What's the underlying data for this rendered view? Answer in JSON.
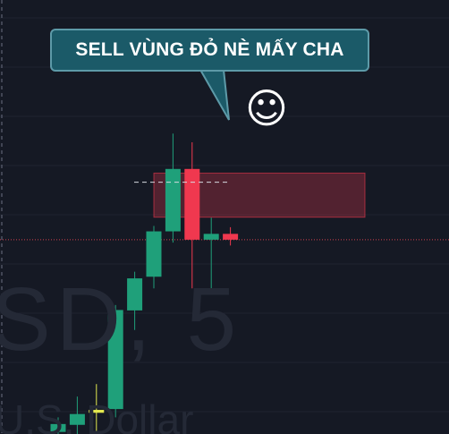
{
  "annotation": {
    "text": "SELL VÙNG ĐỎ NÈ MẤY CHA",
    "emoji": "☺",
    "fill_color": "#1b5a68",
    "border_color": "#5d9aa8"
  },
  "watermark": {
    "symbol_fragment": "SD, 5",
    "name_fragment": "U.S. Dollar"
  },
  "colors": {
    "background": "#151924",
    "bull": "#1fa07a",
    "bear": "#f0384f",
    "highlight": "#e3e84f",
    "sell_zone": "#f0384f",
    "price_line": "#d1404d"
  },
  "chart_data": {
    "type": "candlestick",
    "title": "",
    "price_scale": {
      "top": 1.0,
      "bottom": 0.0,
      "visible": false
    },
    "grid": true,
    "sell_zone": {
      "high": 0.627,
      "low": 0.521
    },
    "resistance_dashed_level": 0.605,
    "last_price_level": 0.467,
    "candles": [
      {
        "i": 0,
        "open": 0.005,
        "high": 0.04,
        "low": -0.02,
        "close": 0.024,
        "color": "bull"
      },
      {
        "i": 1,
        "open": 0.022,
        "high": 0.09,
        "low": -0.01,
        "close": 0.048,
        "color": "bull"
      },
      {
        "i": 2,
        "open": 0.051,
        "high": 0.12,
        "low": -0.01,
        "close": 0.058,
        "color": "highlight"
      },
      {
        "i": 3,
        "open": 0.06,
        "high": 0.31,
        "low": 0.04,
        "close": 0.298,
        "color": "bull"
      },
      {
        "i": 4,
        "open": 0.297,
        "high": 0.39,
        "low": 0.25,
        "close": 0.374,
        "color": "bull"
      },
      {
        "i": 5,
        "open": 0.378,
        "high": 0.5,
        "low": 0.35,
        "close": 0.487,
        "color": "bull"
      },
      {
        "i": 6,
        "open": 0.487,
        "high": 0.722,
        "low": 0.46,
        "close": 0.637,
        "color": "bull"
      },
      {
        "i": 7,
        "open": 0.637,
        "high": 0.701,
        "low": 0.35,
        "close": 0.467,
        "color": "bear"
      },
      {
        "i": 8,
        "open": 0.467,
        "high": 0.52,
        "low": 0.344,
        "close": 0.481,
        "color": "bull"
      },
      {
        "i": 9,
        "open": 0.481,
        "high": 0.497,
        "low": 0.453,
        "close": 0.467,
        "color": "bear"
      }
    ]
  }
}
